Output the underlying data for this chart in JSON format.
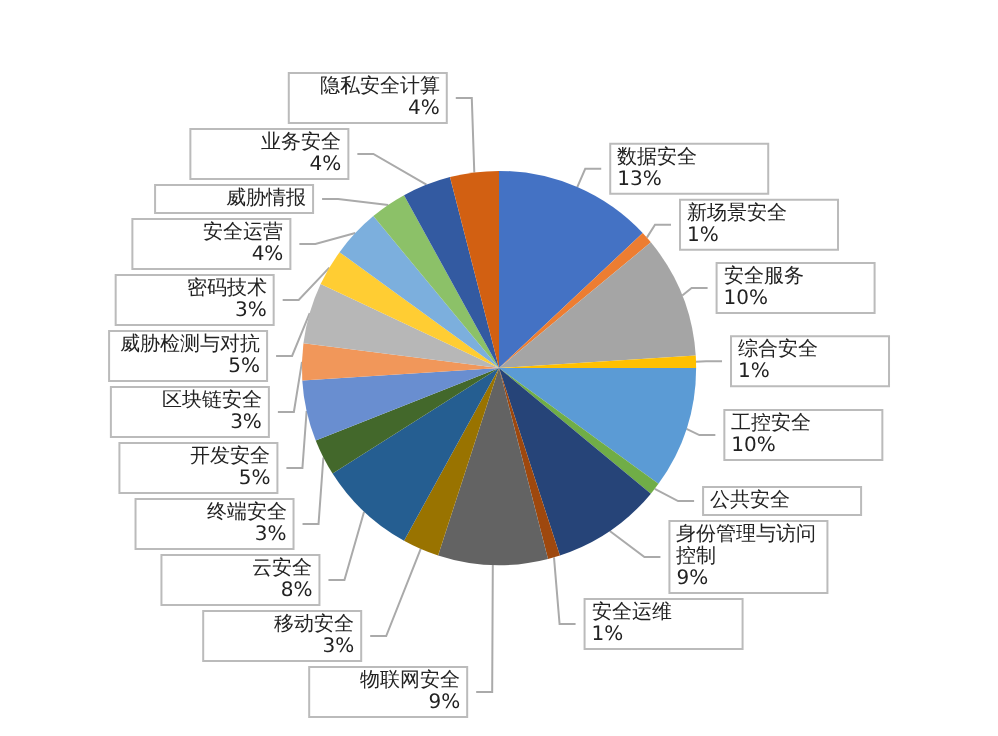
{
  "chart_data": {
    "type": "pie",
    "categories": [
      "数据安全",
      "新场景安全",
      "安全服务",
      "综合安全",
      "工控安全",
      "公共安全",
      "身份管理与访问控制",
      "安全运维",
      "物联网安全",
      "移动安全",
      "云安全",
      "终端安全",
      "开发安全",
      "区块链安全",
      "威胁检测与对抗",
      "密码技术",
      "安全运营",
      "威胁情报",
      "业务安全",
      "隐私安全计算"
    ],
    "values": [
      13,
      1,
      10,
      1,
      10,
      1,
      9,
      1,
      9,
      3,
      8,
      3,
      5,
      3,
      5,
      3,
      4,
      3,
      4,
      4
    ],
    "value_labels": [
      "13%",
      "1%",
      "10%",
      "1%",
      "10%",
      null,
      "9%",
      "1%",
      "9%",
      "3%",
      "8%",
      "3%",
      "5%",
      "3%",
      "5%",
      "3%",
      "4%",
      null,
      "4%",
      "4%"
    ],
    "colors": [
      "#4472c4",
      "#ed7d31",
      "#a5a5a5",
      "#ffc000",
      "#5b9bd5",
      "#70ad47",
      "#264478",
      "#9e480e",
      "#636363",
      "#997300",
      "#255e91",
      "#43682b",
      "#698ed0",
      "#f1975a",
      "#b7b7b7",
      "#ffcd33",
      "#7cafdd",
      "#8cc168",
      "#335aa1",
      "#d26012"
    ],
    "legend": false
  }
}
